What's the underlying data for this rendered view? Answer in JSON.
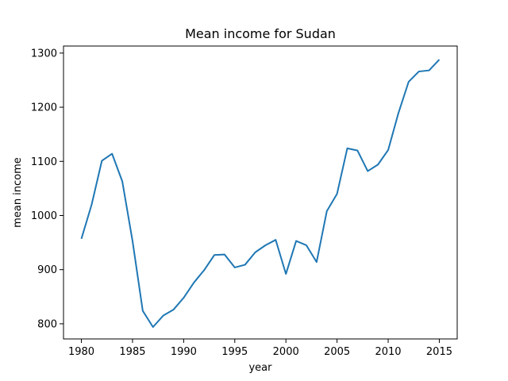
{
  "chart_data": {
    "type": "line",
    "title": "Mean income for Sudan",
    "xlabel": "year",
    "ylabel": "mean income",
    "xlim": [
      1978.25,
      2016.75
    ],
    "ylim": [
      772,
      1313
    ],
    "xticks": [
      1980,
      1985,
      1990,
      1995,
      2000,
      2005,
      2010,
      2015
    ],
    "yticks": [
      800,
      900,
      1000,
      1100,
      1200,
      1300
    ],
    "grid": false,
    "series": [
      {
        "color": "#1f77b4",
        "x": [
          1980,
          1981,
          1982,
          1983,
          1984,
          1985,
          1986,
          1987,
          1988,
          1989,
          1990,
          1991,
          1992,
          1993,
          1994,
          1995,
          1996,
          1997,
          1998,
          1999,
          2000,
          2001,
          2002,
          2003,
          2004,
          2005,
          2006,
          2007,
          2008,
          2009,
          2010,
          2011,
          2012,
          2013,
          2014,
          2015
        ],
        "values": [
          957,
          1020,
          1101,
          1114,
          1063,
          953,
          824,
          794,
          815,
          826,
          848,
          876,
          899,
          927,
          928,
          904,
          909,
          932,
          945,
          955,
          892,
          953,
          945,
          914,
          1008,
          1040,
          1124,
          1120,
          1082,
          1094,
          1121,
          1189,
          1247,
          1266,
          1268,
          1288
        ]
      }
    ]
  }
}
